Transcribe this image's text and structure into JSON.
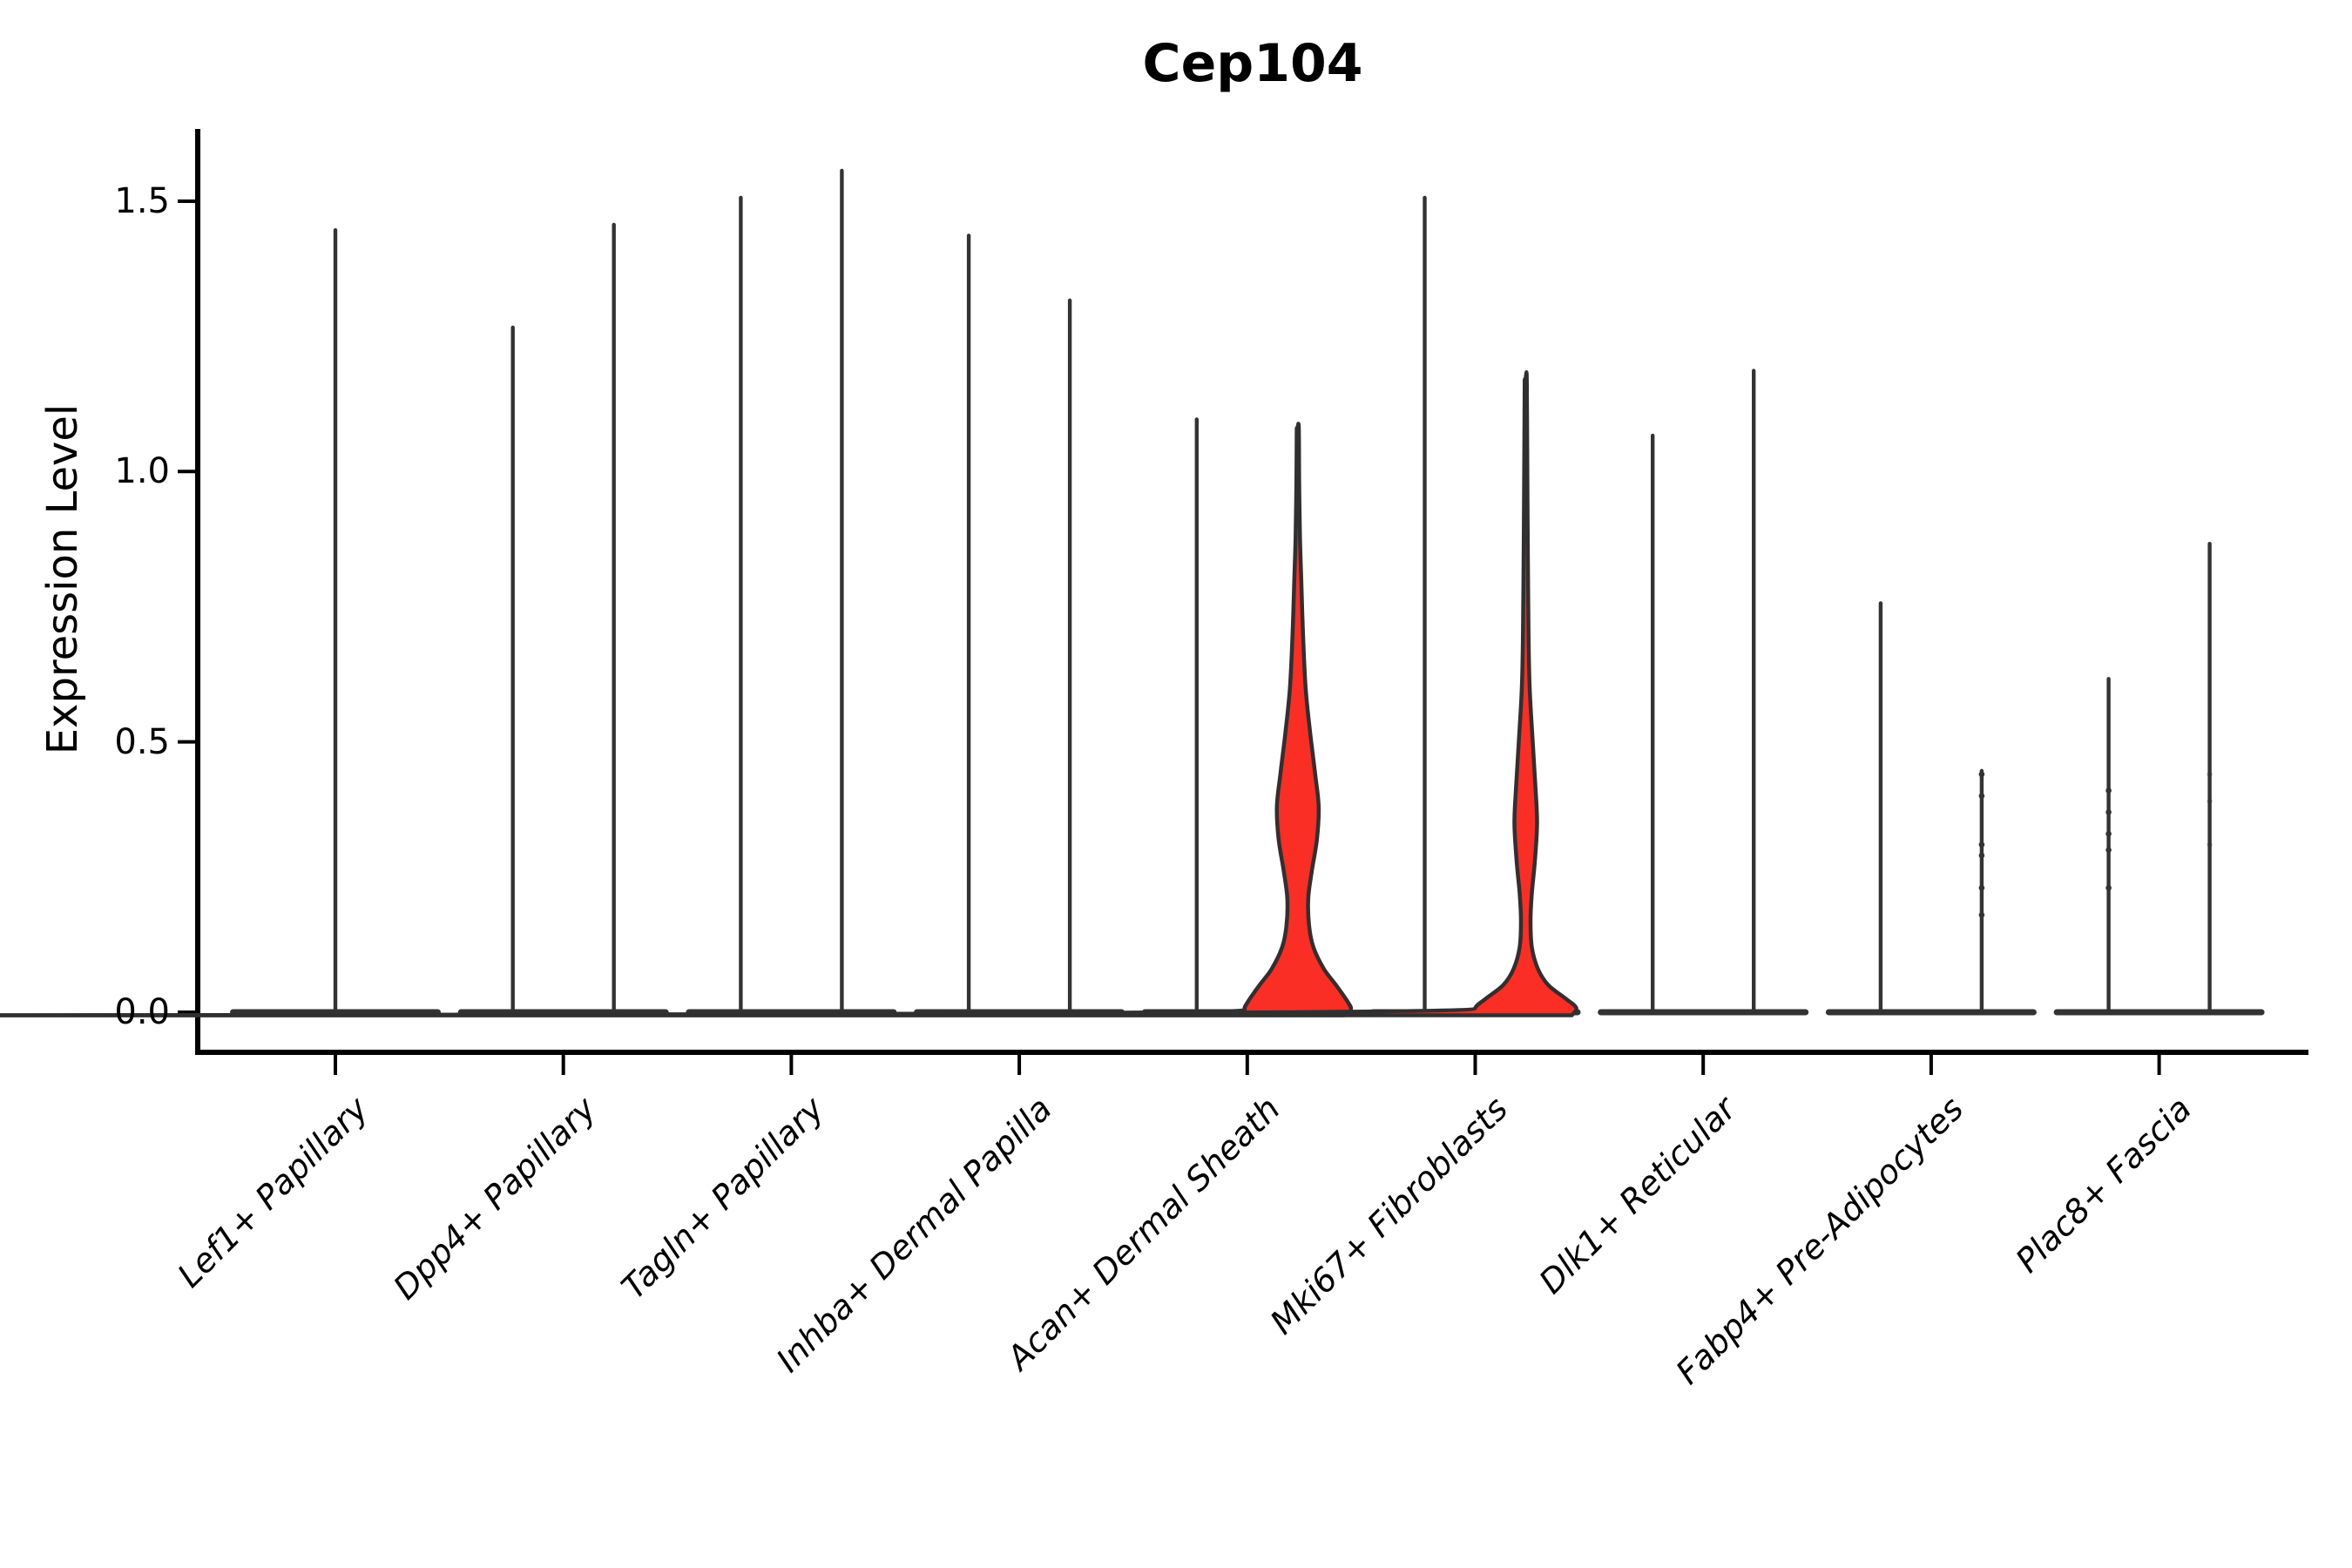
{
  "title": "Cep104",
  "y_axis": {
    "label": "Expression Level",
    "tick_labels": [
      "0.0",
      "0.5",
      "1.0",
      "1.5"
    ]
  },
  "chart_data": {
    "type": "violin",
    "title": "Cep104",
    "xlabel": "",
    "ylabel": "Expression Level",
    "yticks": [
      0.0,
      0.5,
      1.0,
      1.5
    ],
    "ylim": [
      0,
      1.63
    ],
    "grid": false,
    "legend": "none",
    "colors": {
      "highlight_fill": "#fb2e25",
      "violin_stroke": "#303030",
      "spike_fill": "#333333",
      "axis": "#000000"
    },
    "categories": [
      "Lef1+ Papillary",
      "Dpp4+ Papillary",
      "Tagln+ Papillary",
      "Inhba+ Dermal Papilla",
      "Acan+ Dermal Sheath",
      "Mki67+ Fibroblasts",
      "Dlk1+ Reticular",
      "Fabp4+ Pre-Adipocytes",
      "Plac8+ Fascia"
    ],
    "series": [
      {
        "category": "Lef1+ Papillary",
        "violins": [
          {
            "align": "center",
            "peak": 1.45,
            "style": "line",
            "dots": [],
            "dots_faint": []
          }
        ]
      },
      {
        "category": "Dpp4+ Papillary",
        "violins": [
          {
            "align": "left",
            "peak": 1.27,
            "style": "line",
            "dots": [],
            "dots_faint": []
          },
          {
            "align": "right",
            "peak": 1.46,
            "style": "line",
            "dots": [],
            "dots_faint": []
          }
        ]
      },
      {
        "category": "Tagln+ Papillary",
        "violins": [
          {
            "align": "left",
            "peak": 1.51,
            "style": "line",
            "dots": [],
            "dots_faint": []
          },
          {
            "align": "right",
            "peak": 1.56,
            "style": "line",
            "dots": [],
            "dots_faint": []
          }
        ]
      },
      {
        "category": "Inhba+ Dermal Papilla",
        "violins": [
          {
            "align": "left",
            "peak": 1.44,
            "style": "line",
            "dots": [],
            "dots_faint": []
          },
          {
            "align": "right",
            "peak": 1.32,
            "style": "line",
            "dots": [],
            "dots_faint": []
          }
        ]
      },
      {
        "category": "Acan+ Dermal Sheath",
        "violins": [
          {
            "align": "left",
            "peak": 1.1,
            "style": "line",
            "dots": [],
            "dots_faint": []
          },
          {
            "align": "right",
            "peak": 1.08,
            "style": "filled",
            "dots": [],
            "dots_faint": [],
            "profile": [
              [
                1.08,
                1.2
              ],
              [
                0.98,
                1.6
              ],
              [
                0.88,
                2.5
              ],
              [
                0.8,
                4
              ],
              [
                0.7,
                6
              ],
              [
                0.6,
                9
              ],
              [
                0.52,
                14
              ],
              [
                0.44,
                20
              ],
              [
                0.38,
                24
              ],
              [
                0.32,
                22
              ],
              [
                0.26,
                16
              ],
              [
                0.21,
                12
              ],
              [
                0.16,
                13
              ],
              [
                0.12,
                18
              ],
              [
                0.08,
                30
              ],
              [
                0.05,
                44
              ],
              [
                0.02,
                57
              ],
              [
                0.005,
                61
              ]
            ]
          }
        ]
      },
      {
        "category": "Mki67+ Fibroblasts",
        "violins": [
          {
            "align": "left",
            "peak": 1.51,
            "style": "line",
            "dots": [],
            "dots_faint": []
          },
          {
            "align": "right",
            "peak": 1.17,
            "style": "filled",
            "dots": [],
            "dots_faint": [],
            "profile": [
              [
                1.17,
                1.2
              ],
              [
                1.0,
                1.8
              ],
              [
                0.85,
                2.4
              ],
              [
                0.7,
                3.2
              ],
              [
                0.6,
                4.5
              ],
              [
                0.5,
                8
              ],
              [
                0.42,
                11
              ],
              [
                0.35,
                13
              ],
              [
                0.28,
                10.5
              ],
              [
                0.22,
                7
              ],
              [
                0.17,
                5.5
              ],
              [
                0.12,
                7
              ],
              [
                0.08,
                14
              ],
              [
                0.05,
                26
              ],
              [
                0.025,
                46
              ],
              [
                0.008,
                58
              ]
            ]
          }
        ]
      },
      {
        "category": "Dlk1+ Reticular",
        "violins": [
          {
            "align": "left",
            "peak": 1.07,
            "style": "line",
            "dots": [],
            "dots_faint": []
          },
          {
            "align": "right",
            "peak": 1.19,
            "style": "line",
            "dots": [],
            "dots_faint": []
          }
        ]
      },
      {
        "category": "Fabp4+ Pre-Adipocytes",
        "violins": [
          {
            "align": "left",
            "peak": 0.76,
            "style": "line",
            "dots": [],
            "dots_faint": []
          },
          {
            "align": "right",
            "peak": 0.45,
            "style": "line",
            "dots": [
              0.44,
              0.4,
              0.31,
              0.29,
              0.23,
              0.18
            ],
            "dots_faint": []
          }
        ]
      },
      {
        "category": "Plac8+ Fascia",
        "violins": [
          {
            "align": "left",
            "peak": 0.62,
            "style": "line",
            "dots": [
              0.41,
              0.37,
              0.33,
              0.3,
              0.23
            ],
            "dots_faint": []
          },
          {
            "align": "right",
            "peak": 0.87,
            "style": "line",
            "dots": [],
            "dots_faint": [
              0.44,
              0.39,
              0.31
            ]
          }
        ]
      }
    ]
  }
}
